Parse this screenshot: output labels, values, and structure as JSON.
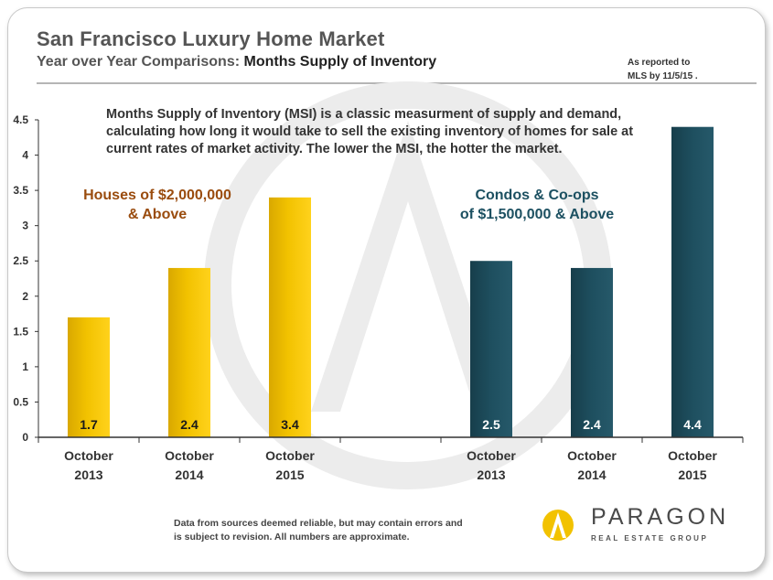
{
  "header": {
    "title": "San Francisco Luxury Home Market",
    "subtitle_prefix": "Year over Year Comparisons: ",
    "subtitle_main": "Months Supply of Inventory",
    "reported_line1": "As reported to",
    "reported_line2": "MLS by 11/5/15 ."
  },
  "description": "Months Supply of Inventory (MSI) is a classic measurment of supply and demand, calculating how long it would take to sell the existing inventory of homes for sale at current rates of market activity. The lower the MSI, the hotter the market.",
  "groups": {
    "houses_line1": "Houses of $2,000,000",
    "houses_line2": "& Above",
    "condos_line1": "Condos & Co-ops",
    "condos_line2": "of $1,500,000 & Above"
  },
  "footer": {
    "line1": "Data from sources deemed reliable, but may contain errors and",
    "line2": "is subject to revision. All numbers are approximate."
  },
  "brand": {
    "name": "PARAGON",
    "sub": "REAL ESTATE GROUP"
  },
  "colors": {
    "houses_bar": "#f2c200",
    "condos_bar": "#1e4f5f",
    "watermark": "#ececec"
  },
  "chart_data": {
    "type": "bar",
    "ylim": [
      0,
      4.5
    ],
    "yticks": [
      "0",
      "0.5",
      "1",
      "1.5",
      "2",
      "2.5",
      "3",
      "3.5",
      "4",
      "4.5"
    ],
    "categories": [
      "October 2013",
      "October 2014",
      "October 2015",
      "",
      "October 2013",
      "October 2014",
      "October 2015"
    ],
    "series": [
      {
        "name": "Houses of $2,000,000 & Above",
        "values": [
          1.7,
          2.4,
          3.4,
          null,
          null,
          null,
          null
        ]
      },
      {
        "name": "Condos & Co-ops of $1,500,000 & Above",
        "values": [
          null,
          null,
          null,
          null,
          2.5,
          2.4,
          4.4
        ]
      }
    ],
    "data_labels": [
      "1.7",
      "2.4",
      "3.4",
      "",
      "2.5",
      "2.4",
      "4.4"
    ]
  }
}
